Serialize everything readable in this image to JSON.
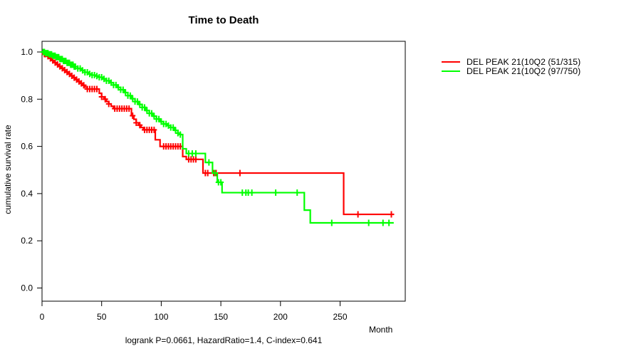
{
  "chart_data": {
    "type": "line",
    "subtype": "kaplan-meier-step-curves",
    "title": "Time to Death",
    "xlabel": "Month",
    "ylabel": "cumulative survival rate",
    "annotation": "logrank P=0.0661, HazardRatio=1.4, C-index=0.641",
    "xlim": [
      0,
      305
    ],
    "ylim": [
      0.0,
      1.0
    ],
    "x_ticks": [
      0,
      50,
      100,
      150,
      200,
      250
    ],
    "y_ticks": [
      0.0,
      0.2,
      0.4,
      0.6,
      0.8,
      1.0
    ],
    "grid": "off",
    "legend_position": "right-outside-top",
    "series": [
      {
        "name": "DEL PEAK 21(10Q2 (51/315)",
        "color": "#ff0000",
        "end_time": 295,
        "points": [
          [
            0,
            1.0
          ],
          [
            2,
            0.991
          ],
          [
            4,
            0.982
          ],
          [
            6,
            0.973
          ],
          [
            8,
            0.964
          ],
          [
            10,
            0.955
          ],
          [
            12,
            0.947
          ],
          [
            14,
            0.939
          ],
          [
            16,
            0.931
          ],
          [
            18,
            0.923
          ],
          [
            20,
            0.915
          ],
          [
            22,
            0.907
          ],
          [
            24,
            0.899
          ],
          [
            26,
            0.891
          ],
          [
            28,
            0.883
          ],
          [
            30,
            0.875
          ],
          [
            32,
            0.867
          ],
          [
            34,
            0.859
          ],
          [
            36,
            0.851
          ],
          [
            38,
            0.843
          ],
          [
            48,
            0.825
          ],
          [
            50,
            0.81
          ],
          [
            52,
            0.8
          ],
          [
            54,
            0.79
          ],
          [
            56,
            0.78
          ],
          [
            58,
            0.77
          ],
          [
            60,
            0.76
          ],
          [
            75,
            0.73
          ],
          [
            77,
            0.715
          ],
          [
            79,
            0.7
          ],
          [
            81,
            0.69
          ],
          [
            83,
            0.68
          ],
          [
            85,
            0.67
          ],
          [
            95,
            0.628
          ],
          [
            99,
            0.6
          ],
          [
            118,
            0.557
          ],
          [
            121,
            0.545
          ],
          [
            135,
            0.487
          ],
          [
            253,
            0.312
          ]
        ],
        "censor_times": [
          2,
          3,
          5,
          7,
          9,
          11,
          13,
          15,
          17,
          19,
          21,
          23,
          25,
          27,
          29,
          31,
          33,
          35,
          38,
          40,
          42,
          44,
          46,
          50,
          53,
          56,
          61,
          63,
          65,
          67,
          69,
          71,
          73,
          76,
          79,
          82,
          86,
          88,
          90,
          92,
          94,
          102,
          104,
          106,
          108,
          110,
          112,
          114,
          116,
          123,
          125,
          127,
          129,
          137,
          139,
          144,
          146,
          166,
          265,
          293
        ]
      },
      {
        "name": "DEL PEAK 21(10Q2 (97/750)",
        "color": "#00ff00",
        "end_time": 295,
        "points": [
          [
            0,
            1.0
          ],
          [
            3,
            0.995
          ],
          [
            6,
            0.99
          ],
          [
            9,
            0.984
          ],
          [
            12,
            0.978
          ],
          [
            15,
            0.97
          ],
          [
            18,
            0.962
          ],
          [
            21,
            0.954
          ],
          [
            24,
            0.946
          ],
          [
            27,
            0.938
          ],
          [
            30,
            0.93
          ],
          [
            33,
            0.922
          ],
          [
            36,
            0.914
          ],
          [
            39,
            0.907
          ],
          [
            42,
            0.902
          ],
          [
            45,
            0.898
          ],
          [
            48,
            0.893
          ],
          [
            51,
            0.886
          ],
          [
            54,
            0.878
          ],
          [
            57,
            0.87
          ],
          [
            60,
            0.86
          ],
          [
            63,
            0.85
          ],
          [
            66,
            0.84
          ],
          [
            69,
            0.828
          ],
          [
            72,
            0.815
          ],
          [
            75,
            0.802
          ],
          [
            78,
            0.79
          ],
          [
            81,
            0.778
          ],
          [
            84,
            0.765
          ],
          [
            87,
            0.752
          ],
          [
            90,
            0.74
          ],
          [
            93,
            0.728
          ],
          [
            96,
            0.716
          ],
          [
            99,
            0.705
          ],
          [
            102,
            0.695
          ],
          [
            105,
            0.688
          ],
          [
            108,
            0.68
          ],
          [
            111,
            0.668
          ],
          [
            114,
            0.656
          ],
          [
            116,
            0.65
          ],
          [
            118,
            0.59
          ],
          [
            121,
            0.57
          ],
          [
            137,
            0.532
          ],
          [
            143,
            0.487
          ],
          [
            147,
            0.448
          ],
          [
            151,
            0.404
          ],
          [
            220,
            0.33
          ],
          [
            225,
            0.276
          ]
        ],
        "censor_times": [
          1,
          2,
          3,
          4,
          5,
          6,
          7,
          8,
          9,
          10,
          11,
          12,
          13,
          14,
          15,
          16,
          17,
          18,
          19,
          20,
          21,
          22,
          23,
          24,
          25,
          26,
          27,
          28,
          30,
          32,
          34,
          36,
          38,
          40,
          42,
          44,
          46,
          48,
          50,
          52,
          54,
          56,
          58,
          60,
          62,
          64,
          66,
          68,
          70,
          72,
          74,
          76,
          78,
          80,
          82,
          84,
          86,
          88,
          90,
          92,
          94,
          96,
          98,
          100,
          102,
          104,
          106,
          108,
          110,
          112,
          114,
          116,
          123,
          126,
          129,
          140,
          145,
          148,
          150,
          168,
          171,
          173,
          176,
          196,
          214,
          243,
          274,
          286,
          291
        ]
      }
    ]
  }
}
